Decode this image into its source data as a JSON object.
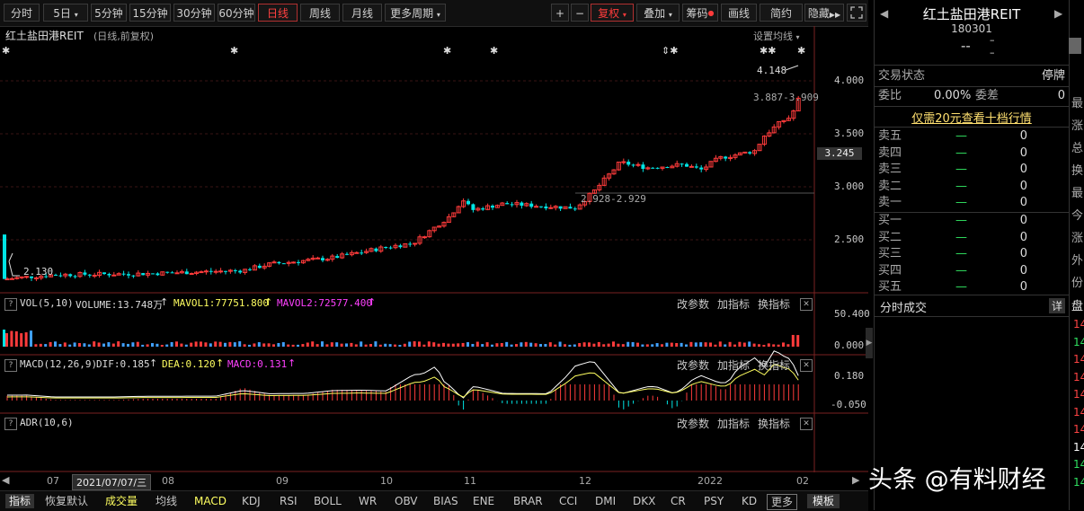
{
  "toolbar": {
    "periods": [
      "分时",
      "5日",
      "5分钟",
      "15分钟",
      "30分钟",
      "60分钟",
      "日线",
      "周线",
      "月线",
      "更多周期"
    ],
    "active_period": "日线",
    "right_buttons": [
      "+",
      "−",
      "复权",
      "叠加",
      "筹码",
      "画线",
      "简约",
      "隐藏"
    ],
    "collapse_icon": "double-right-arrow"
  },
  "chart": {
    "title": "红土盐田港REIT",
    "subtitle": "(日线,前复权)",
    "settings_label": "设置均线",
    "price_labels": [
      "4.000",
      "3.500",
      "3.000",
      "2.500"
    ],
    "current_price": "3.245",
    "annot_low": "2.130",
    "annot_high": "4.148",
    "annot_range1": "3.887-3.909",
    "annot_range2": "2.928-2.929"
  },
  "vol": {
    "name": "VOL(5,10)",
    "volume": "VOLUME:13.748万",
    "mavol1": "MAVOL1:77751.800",
    "mavol2": "MAVOL2:72577.400",
    "axis_top": "50.400",
    "axis_bottom": "0.000",
    "actions": [
      "改参数",
      "加指标",
      "换指标"
    ]
  },
  "macd": {
    "name": "MACD(12,26,9)",
    "dif": "DIF:0.185",
    "dea": "DEA:0.120",
    "macd": "MACD:0.131",
    "axis_top": "0.180",
    "axis_bottom": "-0.050",
    "actions": [
      "改参数",
      "加指标",
      "换指标"
    ]
  },
  "adr": {
    "name": "ADR(10,6)",
    "actions": [
      "改参数",
      "加指标",
      "换指标"
    ]
  },
  "date_axis": {
    "labels": [
      "07",
      "08",
      "09",
      "10",
      "11",
      "12",
      "2022",
      "02"
    ],
    "cursor_date": "2021/07/07/三"
  },
  "bottom_tabs": [
    "指标",
    "恢复默认",
    "成交量",
    "均线",
    "MACD",
    "KDJ",
    "RSI",
    "BOLL",
    "WR",
    "OBV",
    "BIAS",
    "ENE",
    "BRAR",
    "CCI",
    "DMI",
    "DKX",
    "CR",
    "PSY",
    "KD",
    "更多",
    "模板"
  ],
  "right_panel": {
    "name": "红土盐田港REIT",
    "code": "180301",
    "price": "--",
    "change1": "–",
    "change2": "–",
    "status_label": "交易状态",
    "status_value": "停牌",
    "weibi_label": "委比",
    "weibi_value": "0.00%",
    "weicha_label": "委差",
    "weicha_value": "0",
    "promo": "仅需20元查看十档行情",
    "sells": [
      {
        "label": "卖五",
        "price": "—",
        "vol": "0"
      },
      {
        "label": "卖四",
        "price": "—",
        "vol": "0"
      },
      {
        "label": "卖三",
        "price": "—",
        "vol": "0"
      },
      {
        "label": "卖二",
        "price": "—",
        "vol": "0"
      },
      {
        "label": "卖一",
        "price": "—",
        "vol": "0"
      }
    ],
    "buys": [
      {
        "label": "买一",
        "price": "—",
        "vol": "0"
      },
      {
        "label": "买二",
        "price": "—",
        "vol": "0"
      },
      {
        "label": "买三",
        "price": "—",
        "vol": "0"
      },
      {
        "label": "买四",
        "price": "—",
        "vol": "0"
      },
      {
        "label": "买五",
        "price": "—",
        "vol": "0"
      }
    ],
    "trades_label": "分时成交",
    "detail_label": "详",
    "side_chars": [
      "最",
      "涨",
      "总",
      "换",
      "最",
      "今",
      "涨",
      "外",
      "份"
    ],
    "side_tab": "盘",
    "side_numbers": [
      "14",
      "14",
      "14",
      "14",
      "14",
      "14",
      "14",
      "14",
      "14",
      "14"
    ]
  },
  "watermark": "头条 @有料财经",
  "colors": {
    "up": "#ff3b3b",
    "down": "#00e5e5",
    "yellow": "#ffff60",
    "magenta": "#ff40ff",
    "green": "#30e060"
  }
}
